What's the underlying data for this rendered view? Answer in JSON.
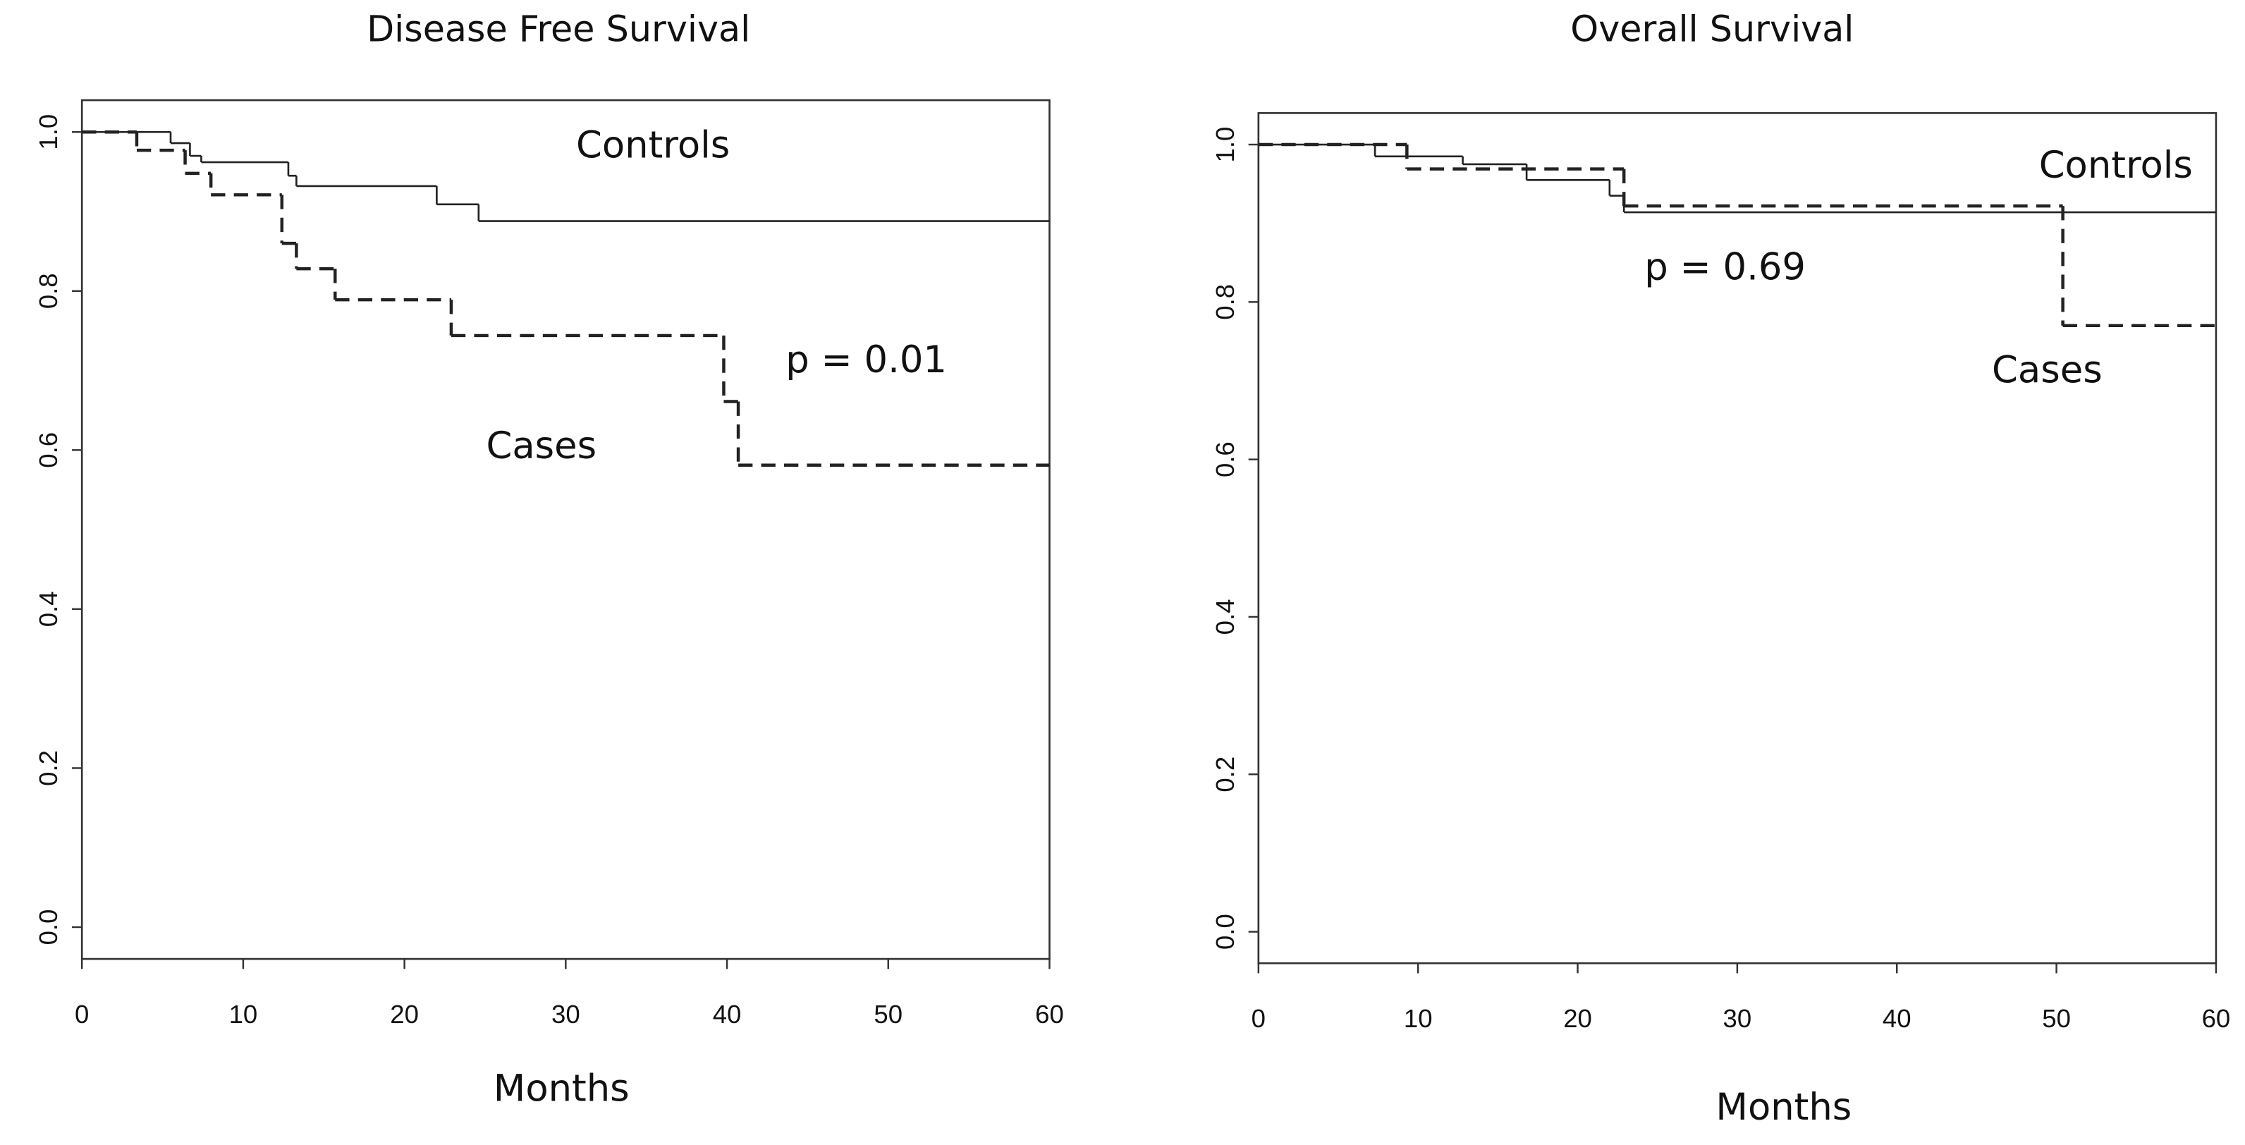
{
  "chart_data": [
    {
      "type": "step",
      "title": "Disease Free Survival",
      "xlabel": "Months",
      "xlim": [
        0,
        60
      ],
      "xticks": [
        0,
        10,
        20,
        30,
        40,
        50,
        60
      ],
      "ylim": [
        -0.04,
        1.04
      ],
      "yticks": [
        {
          "value": 0,
          "label": "0.0"
        },
        0.2,
        0.4,
        0.6,
        0.8,
        {
          "value": 1,
          "label": "1.0"
        }
      ],
      "annotations": [
        "p = 0.01"
      ],
      "series": [
        {
          "name": "Controls",
          "color": "#222222",
          "line_style": "solid",
          "x": [
            0,
            5.5,
            6.7,
            7.4,
            12.8,
            13.3,
            22,
            24.6
          ],
          "values": [
            1,
            0.986,
            0.97,
            0.962,
            0.945,
            0.932,
            0.909,
            0.888
          ]
        },
        {
          "name": "Cases",
          "color": "#222222",
          "line_style": "dashed",
          "x": [
            0,
            3.4,
            6.4,
            8,
            12.4,
            13.3,
            15.7,
            22.9,
            39.8,
            40.7
          ],
          "values": [
            1,
            0.977,
            0.948,
            0.921,
            0.86,
            0.828,
            0.789,
            0.744,
            0.661,
            0.581
          ]
        }
      ]
    },
    {
      "type": "step",
      "title": "Overall Survival",
      "xlabel": "Months",
      "xlim": [
        0,
        60
      ],
      "xticks": [
        0,
        10,
        20,
        30,
        40,
        50,
        60
      ],
      "ylim": [
        -0.04,
        1.04
      ],
      "yticks": [
        {
          "value": 0,
          "label": "0.0"
        },
        0.2,
        0.4,
        0.6,
        0.8,
        {
          "value": 1,
          "label": "1.0"
        }
      ],
      "annotations": [
        "p = 0.69"
      ],
      "series": [
        {
          "name": "Controls",
          "color": "#222222",
          "line_style": "solid",
          "x": [
            0,
            7.3,
            12.8,
            16.8,
            22,
            22.9
          ],
          "values": [
            1,
            0.985,
            0.975,
            0.955,
            0.935,
            0.914
          ]
        },
        {
          "name": "Cases",
          "color": "#222222",
          "line_style": "dashed",
          "x": [
            0,
            9.3,
            22.9,
            50.4
          ],
          "values": [
            1,
            0.969,
            0.922,
            0.77
          ]
        }
      ]
    }
  ]
}
